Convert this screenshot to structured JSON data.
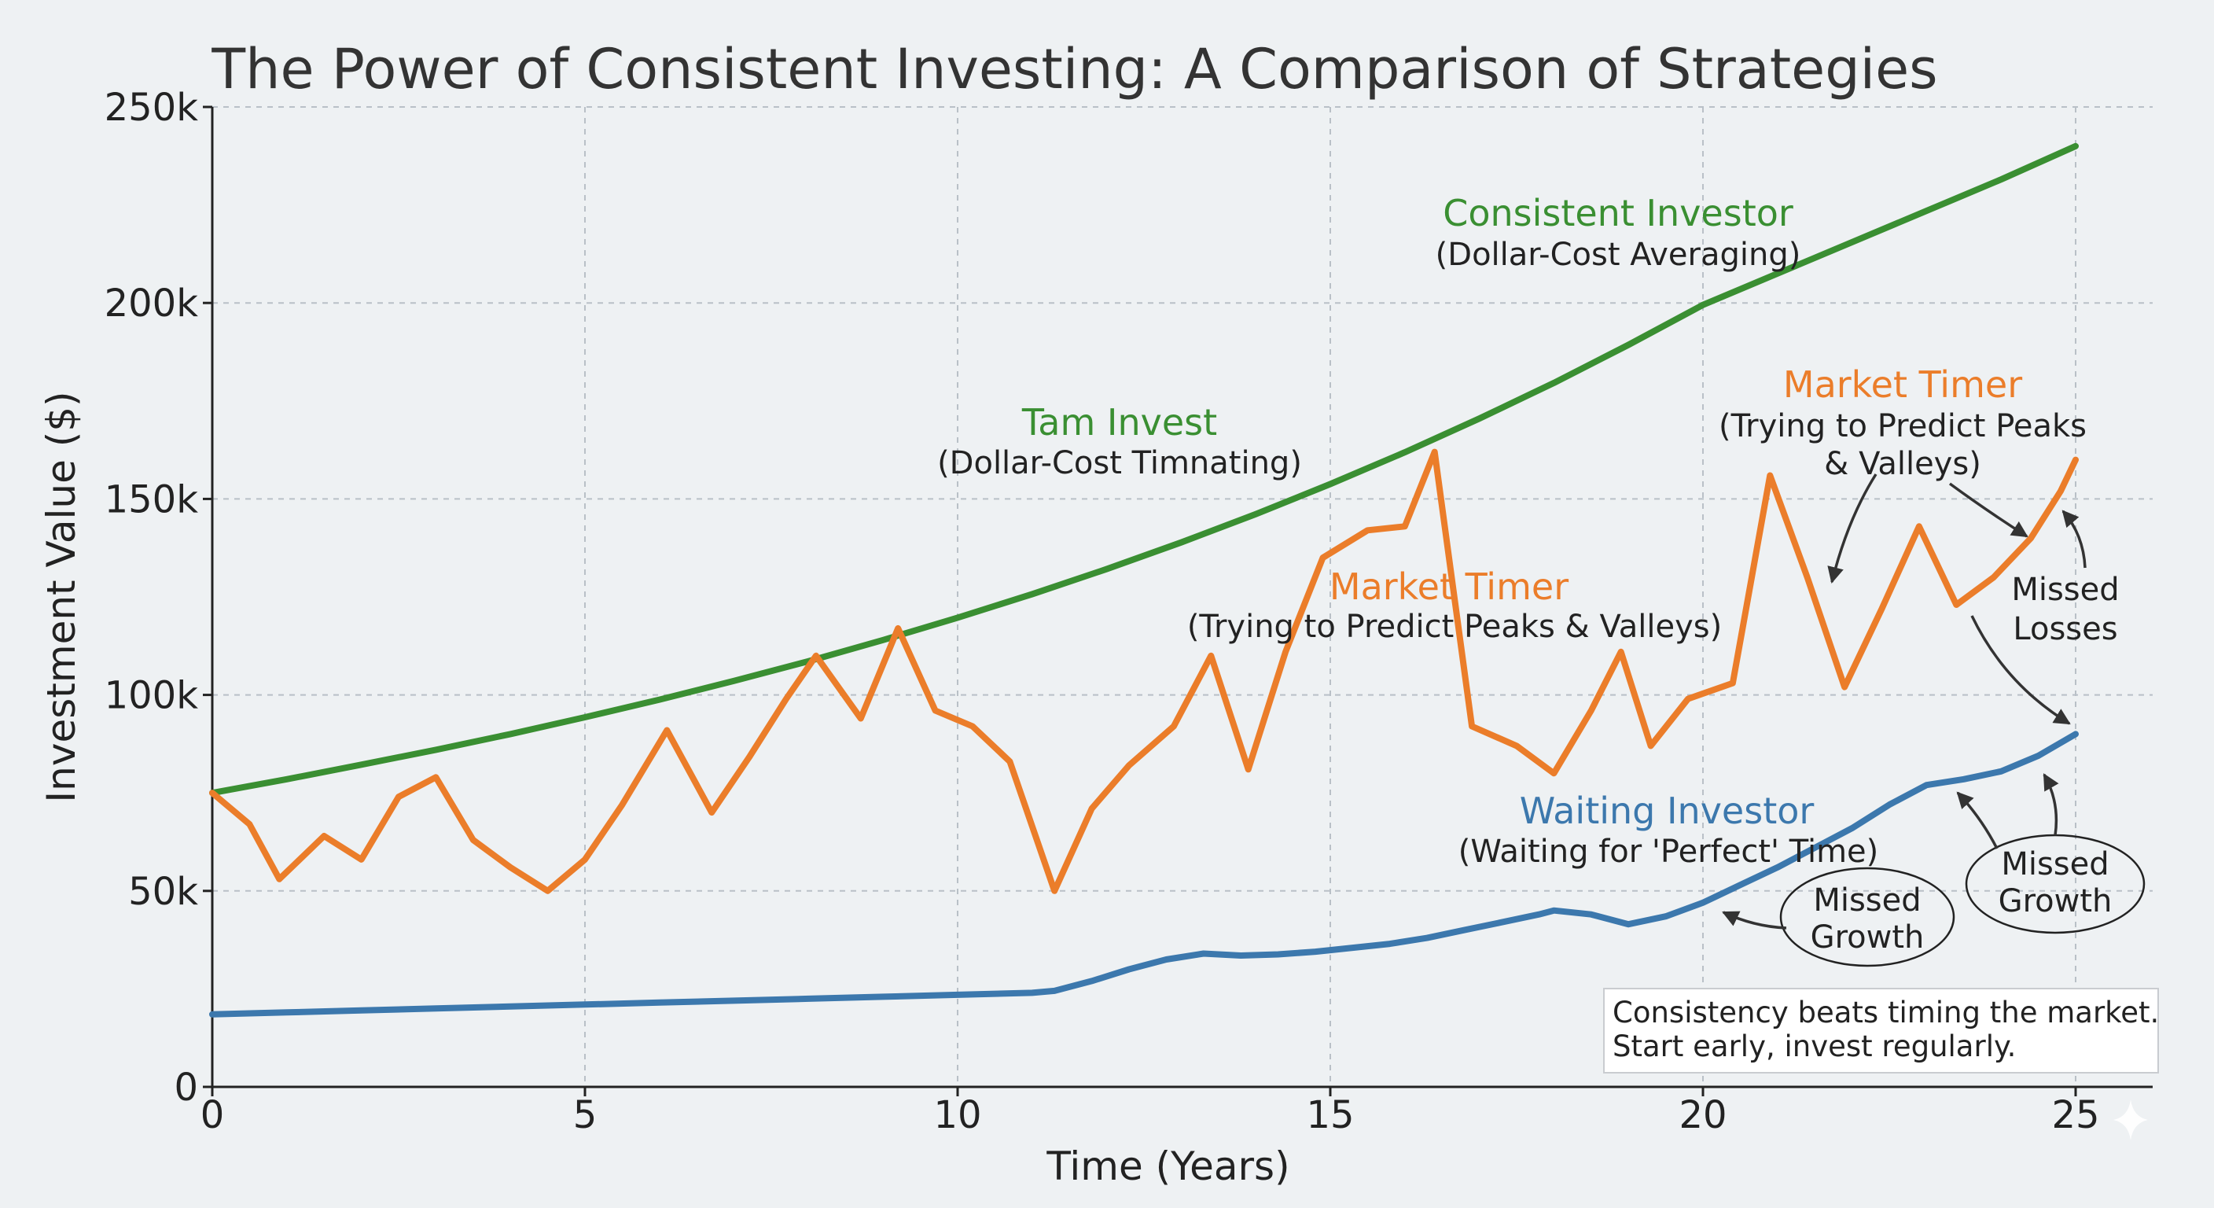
{
  "chart_data": {
    "type": "line",
    "title": "The Power of Consistent Investing: A Comparison of Strategies",
    "xlabel": "Time (Years)",
    "ylabel": "Investment Value ($)",
    "xlim": [
      0,
      26
    ],
    "ylim": [
      0,
      250000
    ],
    "x_ticks": [
      0,
      5,
      10,
      15,
      20,
      25
    ],
    "y_ticks": [
      0,
      50000,
      100000,
      150000,
      200000,
      250000
    ],
    "y_tick_labels": [
      "0",
      "50k",
      "100k",
      "150k",
      "200k",
      "250k"
    ],
    "grid": true,
    "series": [
      {
        "name": "Consistent Investor",
        "color": "#3a8f32",
        "x": [
          0,
          1,
          2,
          3,
          4,
          5,
          6,
          7,
          8,
          9,
          10,
          11,
          12,
          13,
          14,
          15,
          16,
          17,
          18,
          19,
          20,
          21,
          22,
          23,
          24,
          25
        ],
        "y": [
          75000,
          78500,
          82200,
          86000,
          90000,
          94300,
          98800,
          103600,
          108600,
          114000,
          119700,
          125700,
          132100,
          138900,
          146100,
          153800,
          161900,
          170500,
          179600,
          189300,
          199500,
          207500,
          215500,
          223500,
          231500,
          240000
        ]
      },
      {
        "name": "Market Timer",
        "color": "#eb7d2a",
        "x": [
          0,
          0.5,
          0.9,
          1.5,
          2.0,
          2.5,
          3.0,
          3.5,
          4.0,
          4.5,
          5.0,
          5.5,
          6.1,
          6.7,
          7.2,
          7.7,
          8.1,
          8.7,
          9.2,
          9.7,
          10.2,
          10.7,
          11.3,
          11.8,
          12.3,
          12.9,
          13.4,
          13.9,
          14.4,
          14.9,
          15.5,
          16.0,
          16.4,
          16.9,
          17.5,
          18.0,
          18.5,
          18.9,
          19.3,
          19.8,
          20.4,
          20.9,
          21.4,
          21.9,
          22.4,
          22.9,
          23.4,
          23.9,
          24.4,
          24.8,
          25.0
        ],
        "y": [
          75000,
          67000,
          53000,
          64000,
          58000,
          74000,
          79000,
          63000,
          56000,
          50000,
          58000,
          72000,
          91000,
          70000,
          84000,
          99000,
          110000,
          94000,
          117000,
          96000,
          92000,
          83000,
          50000,
          71000,
          82000,
          92000,
          110000,
          81000,
          111000,
          135000,
          142000,
          143000,
          162000,
          92000,
          87000,
          80000,
          96000,
          111000,
          87000,
          99000,
          103000,
          156000,
          130000,
          102000,
          122000,
          143000,
          123000,
          130000,
          140000,
          152000,
          160000
        ]
      },
      {
        "name": "Waiting Investor",
        "color": "#3c78ad",
        "x": [
          0,
          1,
          2,
          3,
          4,
          5,
          6,
          7,
          8,
          9,
          10,
          11,
          11.3,
          11.8,
          12.3,
          12.8,
          13.3,
          13.8,
          14.3,
          14.8,
          15.3,
          15.8,
          16.3,
          16.8,
          17.3,
          17.8,
          18.0,
          18.5,
          19.0,
          19.5,
          20.0,
          20.5,
          21.0,
          21.5,
          22.0,
          22.5,
          23.0,
          23.5,
          24.0,
          24.5,
          25.0
        ],
        "y": [
          18500,
          19000,
          19500,
          20000,
          20500,
          21000,
          21500,
          22000,
          22500,
          23000,
          23500,
          24000,
          24500,
          27000,
          30000,
          32500,
          34000,
          33500,
          33800,
          34500,
          35500,
          36500,
          38000,
          40000,
          42000,
          44000,
          45000,
          44000,
          41500,
          43500,
          47000,
          51500,
          56000,
          61000,
          66000,
          72000,
          77000,
          78500,
          80500,
          84500,
          90000
        ]
      }
    ],
    "annotations": {
      "consistent_label": "Consistent Investor",
      "consistent_sub": "(Dollar-Cost Averaging)",
      "tam_label": "Tam Invest",
      "tam_sub": "(Dollar-Cost Timnating)",
      "timer_label_mid": "Market Timer",
      "timer_sub_mid": "(Trying to Predict Peaks & Valleys)",
      "timer_label_right": "Market Timer",
      "timer_sub_right_1": "(Trying to Predict Peaks",
      "timer_sub_right_2": "& Valleys)",
      "waiting_label": "Waiting Investor",
      "waiting_sub": "(Waiting for 'Perfect' Time)",
      "missed_losses_1": "Missed",
      "missed_losses_2": "Losses",
      "missed_growth_a_1": "Missed",
      "missed_growth_a_2": "Growth",
      "missed_growth_b_1": "Missed",
      "missed_growth_b_2": "Growth"
    },
    "note_line_1": "Consistency beats timing the market.",
    "note_line_2": "Start early, invest regularly."
  }
}
